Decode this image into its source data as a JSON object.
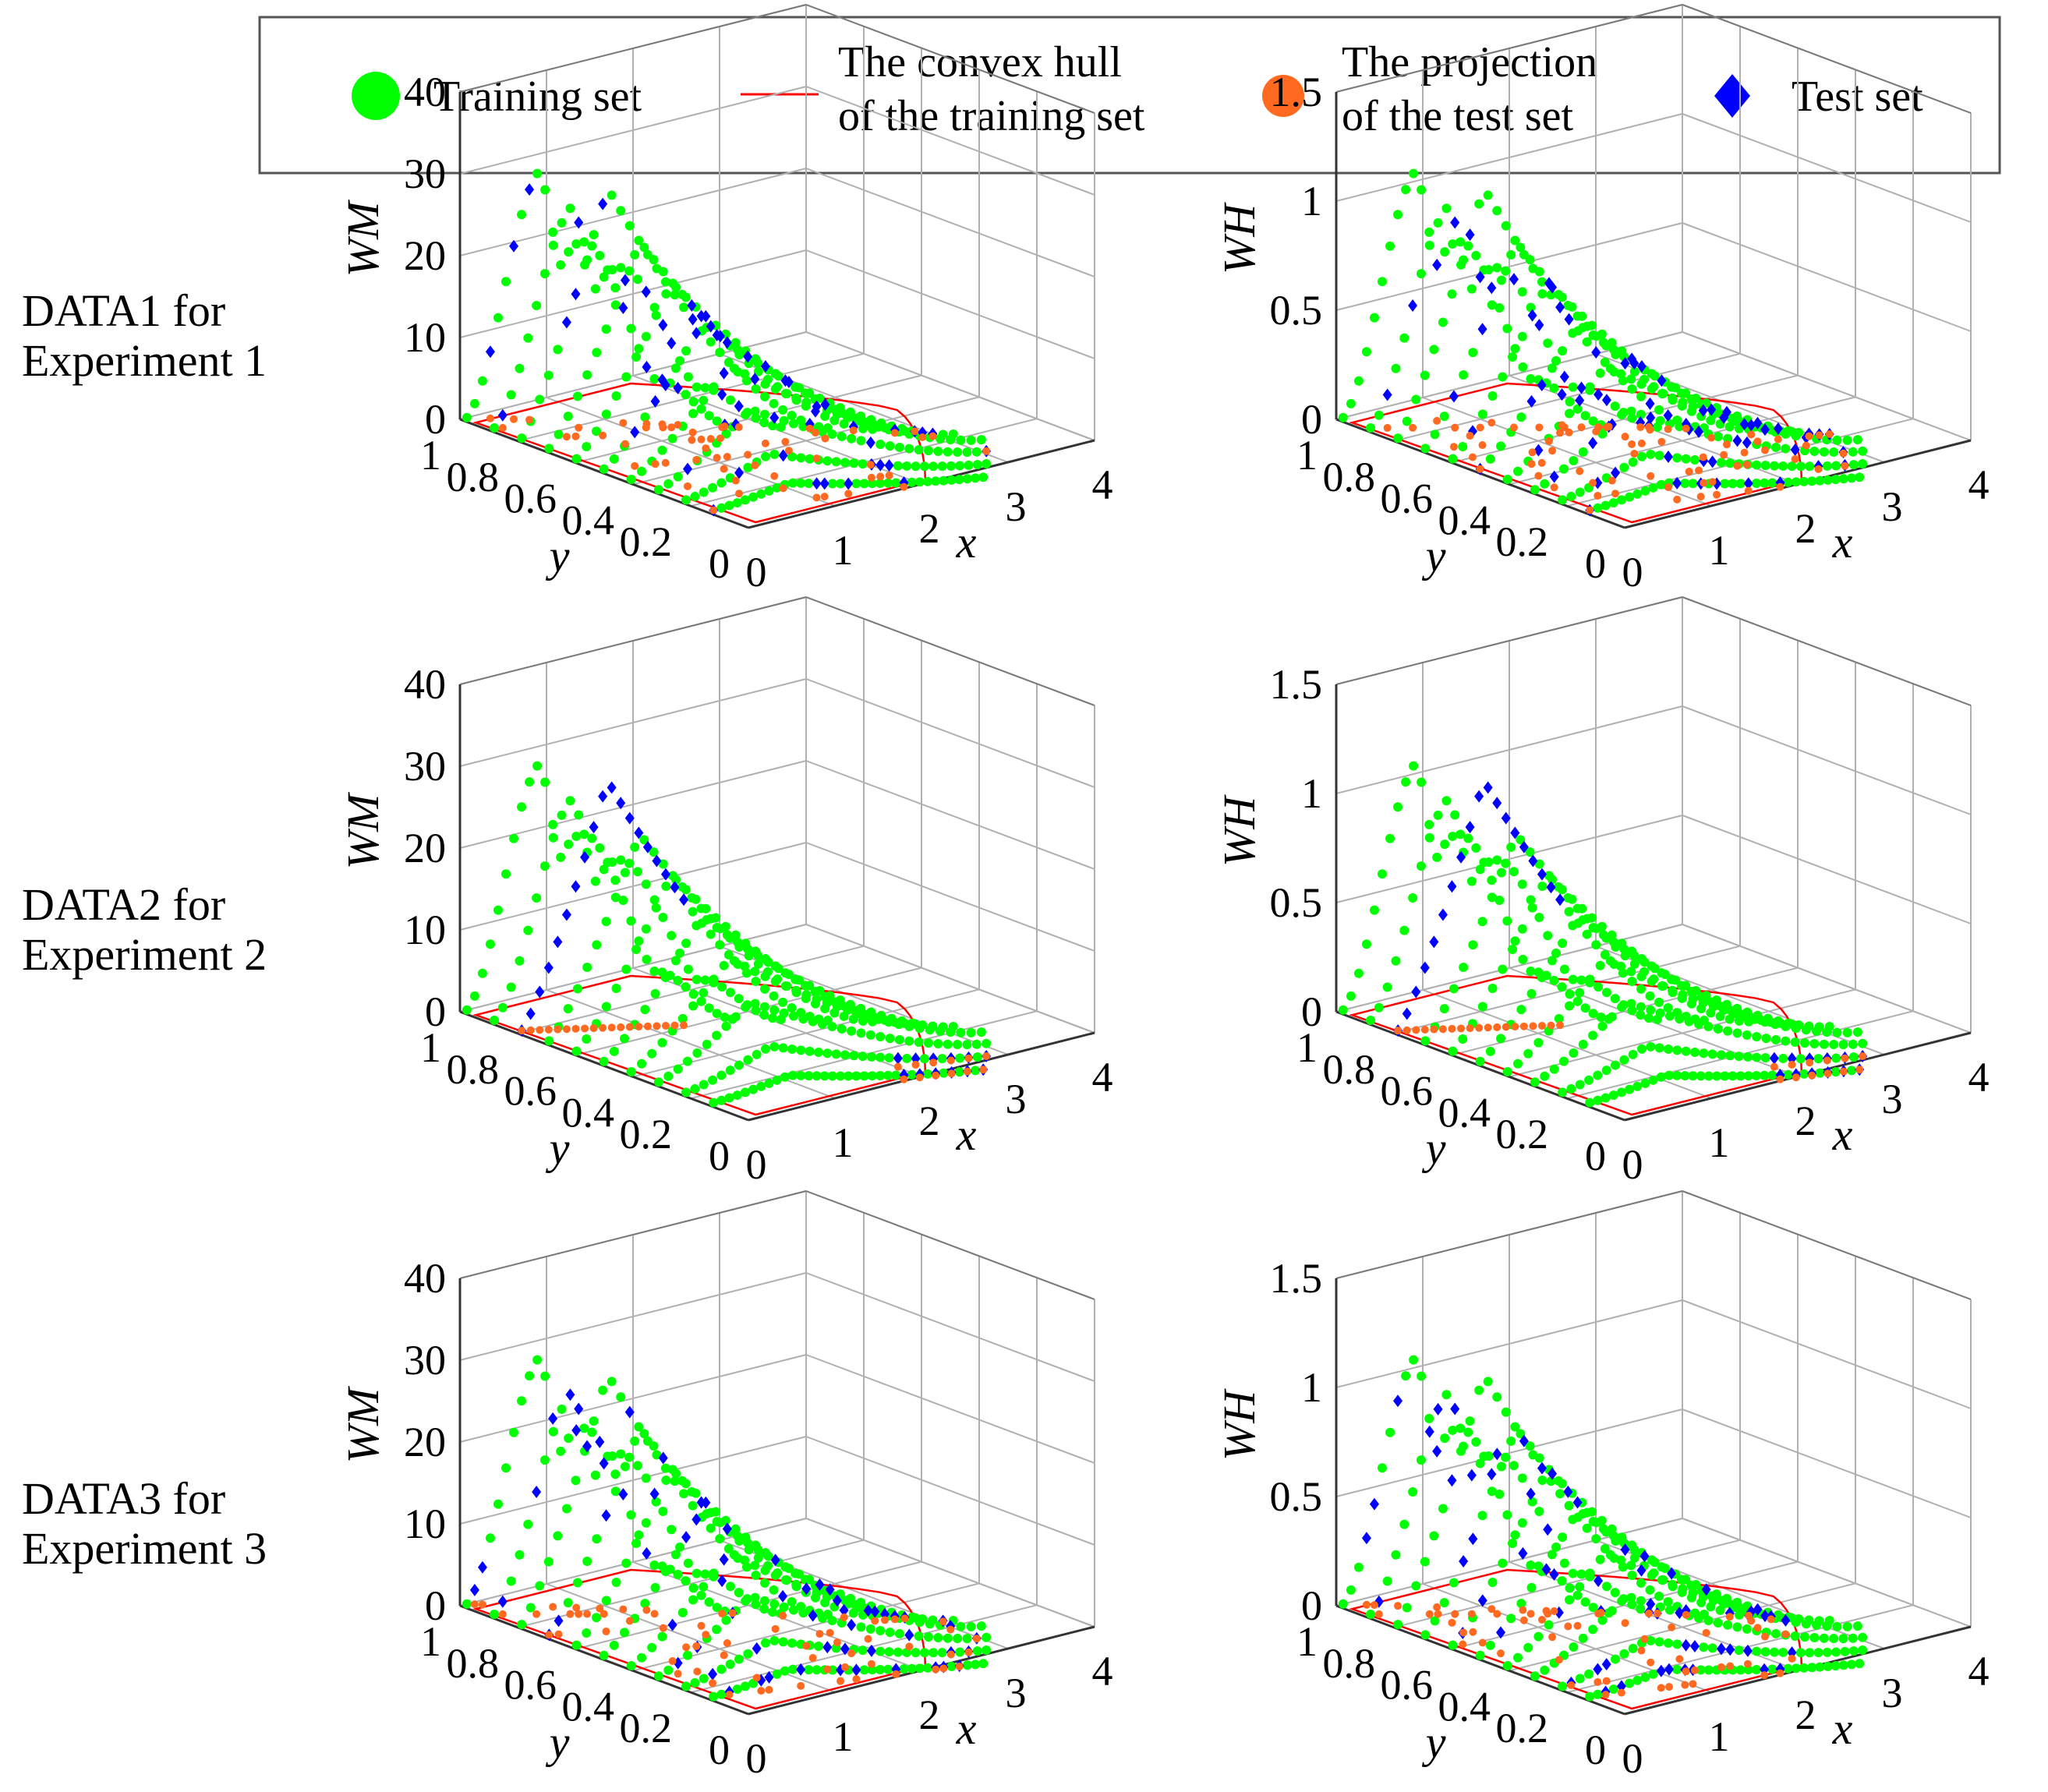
{
  "legend": {
    "items": [
      {
        "name": "training",
        "label_lines": [
          "Training set"
        ],
        "color": "#00ff00",
        "marker": "circle"
      },
      {
        "name": "hull",
        "label_lines": [
          "The convex hull",
          "of the training set"
        ],
        "color": "#ff0000",
        "marker": "line"
      },
      {
        "name": "projection",
        "label_lines": [
          "The projection",
          "of the test set"
        ],
        "color": "#ff6a20",
        "marker": "circle"
      },
      {
        "name": "test",
        "label_lines": [
          "Test set"
        ],
        "color": "#0000ff",
        "marker": "diamond"
      }
    ]
  },
  "row_labels": [
    [
      "DATA1 for",
      "Experiment 1"
    ],
    [
      "DATA2 for",
      "Experiment 2"
    ],
    [
      "DATA3 for",
      "Experiment 3"
    ]
  ],
  "chart_data": [
    {
      "type": "scatter3d",
      "row": 1,
      "zlabel": "WM",
      "xlabel": "x",
      "ylabel": "y",
      "xticks": [
        "0",
        "1",
        "2",
        "3",
        "4"
      ],
      "yticks": [
        "0",
        "0.2",
        "0.4",
        "0.6",
        "0.8",
        "1"
      ],
      "zticks": [
        "0",
        "10",
        "20",
        "30",
        "40"
      ],
      "xlim": [
        0,
        4
      ],
      "ylim": [
        0,
        1
      ],
      "zlim": [
        0,
        40
      ],
      "zmax": 40,
      "test_mode": "scattered",
      "seed": 11
    },
    {
      "type": "scatter3d",
      "row": 1,
      "zlabel": "WH",
      "xlabel": "x",
      "ylabel": "y",
      "xticks": [
        "0",
        "1",
        "2",
        "3",
        "4"
      ],
      "yticks": [
        "0",
        "0.2",
        "0.4",
        "0.6",
        "0.8",
        "1"
      ],
      "zticks": [
        "0",
        "0.5",
        "1",
        "1.5"
      ],
      "xlim": [
        0,
        4
      ],
      "ylim": [
        0,
        1
      ],
      "zlim": [
        0,
        1.5
      ],
      "zmax": 1.5,
      "test_mode": "scattered",
      "seed": 23
    },
    {
      "type": "scatter3d",
      "row": 2,
      "zlabel": "WM",
      "xlabel": "x",
      "ylabel": "y",
      "xticks": [
        "0",
        "1",
        "2",
        "3",
        "4"
      ],
      "yticks": [
        "0",
        "0.2",
        "0.4",
        "0.6",
        "0.8",
        "1"
      ],
      "zticks": [
        "0",
        "10",
        "20",
        "30",
        "40"
      ],
      "xlim": [
        0,
        4
      ],
      "ylim": [
        0,
        1
      ],
      "zlim": [
        0,
        40
      ],
      "zmax": 40,
      "test_mode": "edge",
      "seed": 37
    },
    {
      "type": "scatter3d",
      "row": 2,
      "zlabel": "WH",
      "xlabel": "x",
      "ylabel": "y",
      "xticks": [
        "0",
        "1",
        "2",
        "3",
        "4"
      ],
      "yticks": [
        "0",
        "0.2",
        "0.4",
        "0.6",
        "0.8",
        "1"
      ],
      "zticks": [
        "0",
        "0.5",
        "1",
        "1.5"
      ],
      "xlim": [
        0,
        4
      ],
      "ylim": [
        0,
        1
      ],
      "zlim": [
        0,
        1.5
      ],
      "zmax": 1.5,
      "test_mode": "edge",
      "seed": 41
    },
    {
      "type": "scatter3d",
      "row": 3,
      "zlabel": "WM",
      "xlabel": "x",
      "ylabel": "y",
      "xticks": [
        "0",
        "1",
        "2",
        "3",
        "4"
      ],
      "yticks": [
        "0",
        "0.2",
        "0.4",
        "0.6",
        "0.8",
        "1"
      ],
      "zticks": [
        "0",
        "10",
        "20",
        "30",
        "40"
      ],
      "xlim": [
        0,
        4
      ],
      "ylim": [
        0,
        1
      ],
      "zlim": [
        0,
        40
      ],
      "zmax": 40,
      "test_mode": "scattered",
      "seed": 53
    },
    {
      "type": "scatter3d",
      "row": 3,
      "zlabel": "WH",
      "xlabel": "x",
      "ylabel": "y",
      "xticks": [
        "0",
        "1",
        "2",
        "3",
        "4"
      ],
      "yticks": [
        "0",
        "0.2",
        "0.4",
        "0.6",
        "0.8",
        "1"
      ],
      "zticks": [
        "0",
        "0.5",
        "1",
        "1.5"
      ],
      "xlim": [
        0,
        4
      ],
      "ylim": [
        0,
        1
      ],
      "zlim": [
        0,
        1.5
      ],
      "zmax": 1.5,
      "test_mode": "scattered",
      "seed": 67
    }
  ]
}
